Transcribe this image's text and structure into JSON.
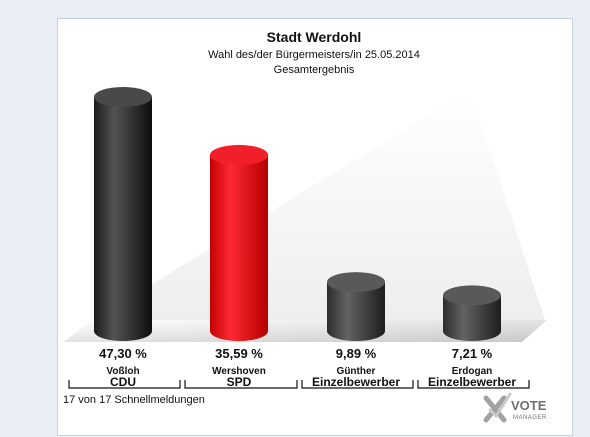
{
  "header": {
    "title": "Stadt Werdohl",
    "subtitle": "Wahl des/der Bürgermeisters/in  25.05.2014",
    "subtitle2": "Gesamtergebnis"
  },
  "footer": {
    "note": "17 von 17 Schnellmeldungen"
  },
  "logo": {
    "text_big": "VOTE",
    "text_small": "MANAGER",
    "icon": "x-check-icon"
  },
  "colors": {
    "cdu": "#3a3a3a",
    "spd": "#e3101b",
    "einzel": "#4a4a4a"
  },
  "chart_data": {
    "type": "bar",
    "title": "Stadt Werdohl",
    "subtitle": "Wahl des/der Bürgermeisters/in  25.05.2014 Gesamtergebnis",
    "categories": [
      "Voßloh",
      "Wershoven",
      "Günther",
      "Erdogan"
    ],
    "parties": [
      "CDU",
      "SPD",
      "Einzelbewerber",
      "Einzelbewerber"
    ],
    "values": [
      47.3,
      35.59,
      9.89,
      7.21
    ],
    "labels": [
      "47,30 %",
      "35,59 %",
      "9,89 %",
      "7,21 %"
    ],
    "bar_colors": [
      "#3a3a3a",
      "#e3101b",
      "#4a4a4a",
      "#4a4a4a"
    ],
    "unit": "%",
    "ylim": [
      0,
      50
    ],
    "grid": false,
    "legend": "none"
  }
}
